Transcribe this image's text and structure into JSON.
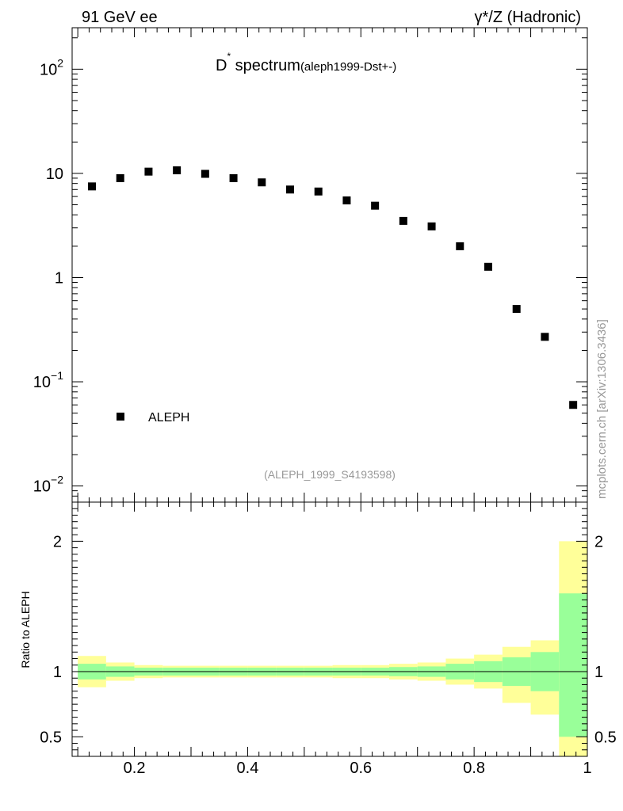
{
  "header": {
    "left_label": "91 GeV ee",
    "right_label": "γ*/Z (Hadronic)"
  },
  "plot": {
    "title_main": "D",
    "title_sup": "*",
    "title_rest": " spectrum",
    "title_tag": "(aleph1999-Dst+-)",
    "analysis_id": "(ALEPH_1999_S4193598)",
    "side_note": "mcplots.cern.ch [arXiv:1306.3436]"
  },
  "legend": {
    "label": "ALEPH"
  },
  "colors": {
    "marker": "#000000",
    "band_inner": "#99ff99",
    "band_outer": "#ffff99",
    "muted_text": "#999999"
  },
  "chart_data": [
    {
      "type": "scatter",
      "name": "main",
      "yscale": "log",
      "xlim": [
        0.09,
        1.0
      ],
      "ylim": [
        0.007,
        250
      ],
      "title": "D* spectrum",
      "xlabel": "",
      "ylabel": "",
      "ytick_labels": [
        {
          "value": 0.01,
          "base": "10",
          "exp": "−2"
        },
        {
          "value": 0.1,
          "base": "10",
          "exp": "−1"
        },
        {
          "value": 1,
          "base": "1",
          "exp": ""
        },
        {
          "value": 10,
          "base": "10",
          "exp": ""
        },
        {
          "value": 100,
          "base": "10",
          "exp": "2"
        }
      ],
      "series": [
        {
          "name": "ALEPH",
          "x": [
            0.125,
            0.175,
            0.225,
            0.275,
            0.325,
            0.375,
            0.425,
            0.475,
            0.525,
            0.575,
            0.625,
            0.675,
            0.725,
            0.775,
            0.825,
            0.875,
            0.925,
            0.975
          ],
          "y": [
            7.5,
            9.0,
            10.4,
            10.7,
            9.9,
            9.0,
            8.2,
            7.0,
            6.7,
            5.5,
            4.9,
            3.5,
            3.1,
            2.0,
            1.27,
            0.5,
            0.27,
            0.06
          ]
        }
      ]
    },
    {
      "type": "area",
      "name": "ratio",
      "ylim": [
        0.35,
        2.3
      ],
      "ylabel": "Ratio to ALEPH",
      "reference_line": 1,
      "ytick_labels": [
        "0.5",
        "1",
        "2"
      ],
      "yticks": [
        0.5,
        1,
        2
      ],
      "xtick_labels": [
        "0.2",
        "0.4",
        "0.6",
        "0.8",
        "1"
      ],
      "xticks": [
        0.2,
        0.4,
        0.6,
        0.8,
        1.0
      ],
      "bins": [
        {
          "lo": 0.1,
          "hi": 0.15,
          "in_lo": 0.94,
          "in_hi": 1.06,
          "out_lo": 0.88,
          "out_hi": 1.12
        },
        {
          "lo": 0.15,
          "hi": 0.2,
          "in_lo": 0.96,
          "in_hi": 1.04,
          "out_lo": 0.93,
          "out_hi": 1.07
        },
        {
          "lo": 0.2,
          "hi": 0.25,
          "in_lo": 0.97,
          "in_hi": 1.03,
          "out_lo": 0.95,
          "out_hi": 1.05
        },
        {
          "lo": 0.25,
          "hi": 0.3,
          "in_lo": 0.97,
          "in_hi": 1.03,
          "out_lo": 0.955,
          "out_hi": 1.045
        },
        {
          "lo": 0.3,
          "hi": 0.35,
          "in_lo": 0.97,
          "in_hi": 1.03,
          "out_lo": 0.955,
          "out_hi": 1.045
        },
        {
          "lo": 0.35,
          "hi": 0.4,
          "in_lo": 0.97,
          "in_hi": 1.03,
          "out_lo": 0.955,
          "out_hi": 1.045
        },
        {
          "lo": 0.4,
          "hi": 0.45,
          "in_lo": 0.97,
          "in_hi": 1.03,
          "out_lo": 0.955,
          "out_hi": 1.045
        },
        {
          "lo": 0.45,
          "hi": 0.5,
          "in_lo": 0.97,
          "in_hi": 1.03,
          "out_lo": 0.955,
          "out_hi": 1.045
        },
        {
          "lo": 0.5,
          "hi": 0.55,
          "in_lo": 0.97,
          "in_hi": 1.03,
          "out_lo": 0.955,
          "out_hi": 1.045
        },
        {
          "lo": 0.55,
          "hi": 0.6,
          "in_lo": 0.97,
          "in_hi": 1.03,
          "out_lo": 0.95,
          "out_hi": 1.05
        },
        {
          "lo": 0.6,
          "hi": 0.65,
          "in_lo": 0.97,
          "in_hi": 1.03,
          "out_lo": 0.95,
          "out_hi": 1.05
        },
        {
          "lo": 0.65,
          "hi": 0.7,
          "in_lo": 0.965,
          "in_hi": 1.035,
          "out_lo": 0.94,
          "out_hi": 1.06
        },
        {
          "lo": 0.7,
          "hi": 0.75,
          "in_lo": 0.96,
          "in_hi": 1.04,
          "out_lo": 0.93,
          "out_hi": 1.07
        },
        {
          "lo": 0.75,
          "hi": 0.8,
          "in_lo": 0.94,
          "in_hi": 1.06,
          "out_lo": 0.9,
          "out_hi": 1.1
        },
        {
          "lo": 0.8,
          "hi": 0.85,
          "in_lo": 0.92,
          "in_hi": 1.08,
          "out_lo": 0.87,
          "out_hi": 1.13
        },
        {
          "lo": 0.85,
          "hi": 0.9,
          "in_lo": 0.89,
          "in_hi": 1.11,
          "out_lo": 0.76,
          "out_hi": 1.19
        },
        {
          "lo": 0.9,
          "hi": 0.95,
          "in_lo": 0.85,
          "in_hi": 1.15,
          "out_lo": 0.67,
          "out_hi": 1.24
        },
        {
          "lo": 0.95,
          "hi": 1.0,
          "in_lo": 0.5,
          "in_hi": 1.6,
          "out_lo": 0.35,
          "out_hi": 2.0
        }
      ]
    }
  ]
}
